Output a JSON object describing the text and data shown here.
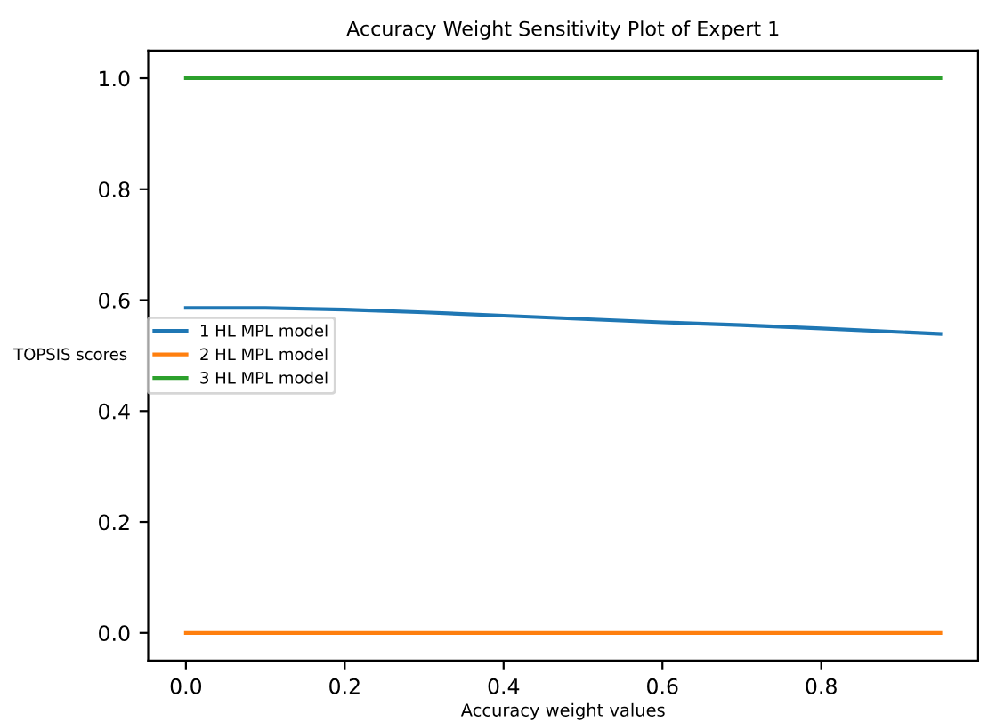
{
  "chart_data": {
    "type": "line",
    "title": "Accuracy Weight Sensitivity Plot of Expert 1",
    "xlabel": "Accuracy weight values",
    "ylabel": "TOPSIS scores",
    "x": [
      0,
      0.1,
      0.2,
      0.3,
      0.4,
      0.5,
      0.6,
      0.7,
      0.8,
      0.95
    ],
    "series": [
      {
        "name": "1 HL MPL model",
        "color": "#1f77b4",
        "values": [
          0.586,
          0.586,
          0.583,
          0.578,
          0.572,
          0.566,
          0.56,
          0.555,
          0.549,
          0.539
        ]
      },
      {
        "name": "2 HL MPL model",
        "color": "#ff7f0e",
        "values": [
          0,
          0,
          0,
          0,
          0,
          0,
          0,
          0,
          0,
          0
        ]
      },
      {
        "name": "3 HL MPL model",
        "color": "#2ca02c",
        "values": [
          1,
          1,
          1,
          1,
          1,
          1,
          1,
          1,
          1,
          1
        ]
      }
    ],
    "xlim": [
      -0.0475,
      0.9975
    ],
    "ylim": [
      -0.05,
      1.05
    ],
    "xticks": [
      {
        "value": 0,
        "label": "0.0"
      },
      0.2,
      0.4,
      0.6,
      0.8
    ],
    "yticks": [
      {
        "value": 0,
        "label": "0.0"
      },
      0.2,
      0.4,
      0.6,
      0.8,
      {
        "value": 1,
        "label": "1.0"
      }
    ],
    "legend": "left",
    "grid": false
  }
}
